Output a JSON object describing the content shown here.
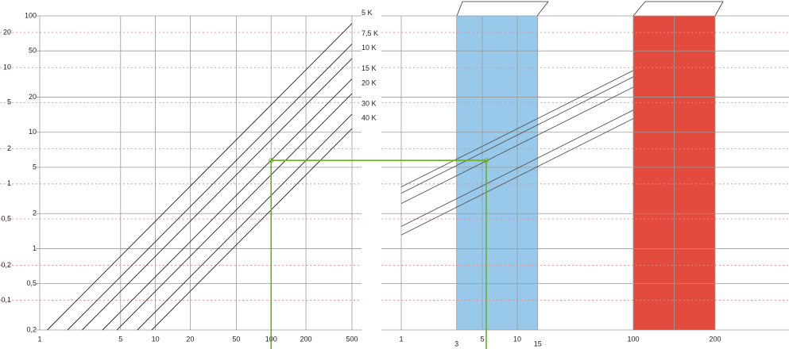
{
  "chart_data": [
    {
      "type": "line",
      "xscale": "log",
      "yscale": "log",
      "xlim": [
        1,
        500
      ],
      "xticks": [
        1,
        5,
        10,
        20,
        50,
        100,
        200,
        500
      ],
      "ylim": [
        0.2,
        100
      ],
      "yticks": [
        100,
        50,
        20,
        10,
        5,
        2,
        1,
        {
          "value": 0.5,
          "label": "0,5"
        },
        {
          "value": 0.2,
          "label": "0,2"
        }
      ],
      "y2lim": [
        0.0556,
        27.8
      ],
      "y2ticks": [
        20,
        10,
        5,
        2,
        1,
        {
          "value": 0.5,
          "label": "0,5"
        },
        {
          "value": 0.2,
          "label": "0,2"
        },
        {
          "value": 0.1,
          "label": "0,1"
        }
      ],
      "grid": true,
      "series": [
        {
          "name": "5 K",
          "color": "#222222",
          "x": [
            1.163,
            500
          ],
          "values": [
            0.2,
            86.0
          ]
        },
        {
          "name": "7,5 K",
          "color": "#222222",
          "x": [
            1.74,
            500
          ],
          "values": [
            0.2,
            57.3
          ]
        },
        {
          "name": "10 K",
          "color": "#222222",
          "x": [
            2.33,
            500
          ],
          "values": [
            0.2,
            43.0
          ]
        },
        {
          "name": "15 K",
          "color": "#222222",
          "x": [
            3.49,
            500
          ],
          "values": [
            0.2,
            28.7
          ]
        },
        {
          "name": "20 K",
          "color": "#222222",
          "x": [
            4.65,
            500
          ],
          "values": [
            0.2,
            21.5
          ]
        },
        {
          "name": "30 K",
          "color": "#222222",
          "x": [
            6.98,
            500
          ],
          "values": [
            0.2,
            14.3
          ]
        },
        {
          "name": "40 K",
          "color": "#222222",
          "x": [
            9.3,
            500
          ],
          "values": [
            0.2,
            10.75
          ]
        }
      ],
      "reading": {
        "x": 100,
        "y": 5.73,
        "color": "#6ab023"
      }
    },
    {
      "type": "line",
      "xscale": "log",
      "yscale": "log",
      "xlim": [
        1,
        100
      ],
      "xticks": [
        1,
        3,
        5,
        10,
        15
      ],
      "ylim": [
        0.2,
        100
      ],
      "band": {
        "from": 3,
        "to": 15,
        "color": "#92c6ea"
      },
      "series": [
        {
          "color": "#555555",
          "x": [
            1,
            100
          ],
          "values": [
            3.39,
            33.9
          ]
        },
        {
          "color": "#555555",
          "x": [
            1,
            100
          ],
          "values": [
            2.99,
            29.9
          ]
        },
        {
          "color": "#555555",
          "x": [
            1,
            100
          ],
          "values": [
            2.44,
            24.4
          ]
        },
        {
          "color": "#555555",
          "x": [
            1,
            100
          ],
          "values": [
            1.55,
            15.5
          ]
        },
        {
          "color": "#555555",
          "x": [
            1,
            100
          ],
          "values": [
            1.31,
            13.1
          ]
        }
      ],
      "reading": {
        "x": 5.4,
        "y": 5.73,
        "color": "#6ab023"
      }
    },
    {
      "type": "band",
      "xscale": "linear",
      "xlim": [
        100,
        200
      ],
      "xticks": [
        100,
        200
      ],
      "minor_xticks": [
        150
      ],
      "band": {
        "from": 100,
        "to": 200,
        "color": "#e04133"
      }
    }
  ]
}
